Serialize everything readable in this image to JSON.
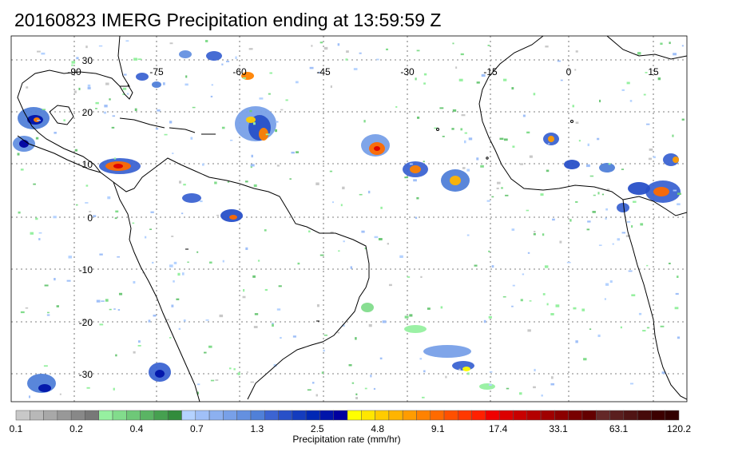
{
  "title": "20160823 IMERG Precipitation ending at 13:59:59 Z",
  "map": {
    "lon_labels": [
      "-90",
      "-75",
      "-60",
      "-45",
      "-30",
      "-15",
      "0",
      "15"
    ],
    "lat_labels": [
      "30",
      "20",
      "10",
      "0",
      "-10",
      "-20",
      "-30"
    ],
    "grid": "dotted",
    "land_outline_color": "#000000"
  },
  "colorbar": {
    "tick_labels": [
      "0.1",
      "0.2",
      "0.4",
      "0.7",
      "1.3",
      "2.5",
      "4.8",
      "9.1",
      "17.4",
      "33.1",
      "63.1",
      "120.2"
    ],
    "label": "Precipitation rate (mm/hr)",
    "colors": [
      "#c8c8c8",
      "#b8b8b8",
      "#a8a8a8",
      "#989898",
      "#888888",
      "#787878",
      "#96f0a0",
      "#82dc8c",
      "#6ec878",
      "#5ab464",
      "#46a050",
      "#328c3c",
      "#b4d2ff",
      "#a0c0f8",
      "#8cb0f0",
      "#78a0e8",
      "#6490e0",
      "#5080d8",
      "#3c64d2",
      "#2850c8",
      "#143cbe",
      "#0028b4",
      "#0014aa",
      "#0000a0",
      "#ffff00",
      "#ffe600",
      "#ffcc00",
      "#ffb400",
      "#ff9c00",
      "#ff8200",
      "#ff6a00",
      "#ff5000",
      "#ff3800",
      "#ff2000",
      "#f00000",
      "#dc0000",
      "#c80000",
      "#b40000",
      "#a00000",
      "#8c0000",
      "#780000",
      "#640000",
      "#642828",
      "#5a1e1e",
      "#501414",
      "#460a0a",
      "#3c0000",
      "#320000"
    ]
  }
}
